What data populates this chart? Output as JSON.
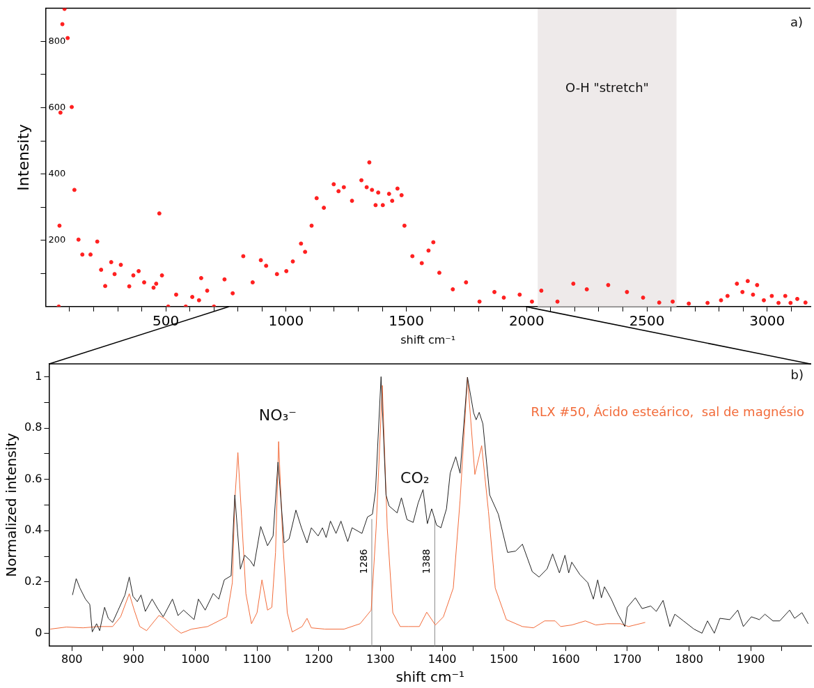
{
  "chart_data": [
    {
      "type": "scatter",
      "ylabel": "Intensity",
      "xlabel": "shift cm⁻¹",
      "marker": "circle",
      "grid": false,
      "xlim": [
        0,
        3180
      ],
      "ylim": [
        0,
        900
      ],
      "xticks": [
        {
          "value": 100,
          "label": null
        },
        {
          "value": 200,
          "label": null
        },
        {
          "value": 300,
          "label": null
        },
        {
          "value": 400,
          "label": null
        },
        500,
        {
          "value": 600,
          "label": null
        },
        {
          "value": 700,
          "label": null
        },
        {
          "value": 800,
          "label": null
        },
        {
          "value": 900,
          "label": null
        },
        1000,
        {
          "value": 1100,
          "label": null
        },
        {
          "value": 1200,
          "label": null
        },
        {
          "value": 1300,
          "label": null
        },
        {
          "value": 1400,
          "label": null
        },
        1500,
        {
          "value": 1600,
          "label": null
        },
        {
          "value": 1700,
          "label": null
        },
        {
          "value": 1800,
          "label": null
        },
        {
          "value": 1900,
          "label": null
        },
        2000,
        {
          "value": 2100,
          "label": null
        },
        {
          "value": 2200,
          "label": null
        },
        {
          "value": 2300,
          "label": null
        },
        {
          "value": 2400,
          "label": null
        },
        2500,
        {
          "value": 2600,
          "label": null
        },
        {
          "value": 2700,
          "label": null
        },
        {
          "value": 2800,
          "label": null
        },
        {
          "value": 2900,
          "label": null
        },
        3000,
        {
          "value": 3100,
          "label": null
        }
      ],
      "yticks": [
        {
          "value": 100,
          "label": null
        },
        200,
        {
          "value": 300,
          "label": null
        },
        400,
        {
          "value": 500,
          "label": null
        },
        600,
        {
          "value": 700,
          "label": null
        },
        800
      ],
      "bands": [
        {
          "axis": "x",
          "from": 2046,
          "to": 2623,
          "label": "O-H \"stretch\"",
          "color": "#eeeaea"
        }
      ],
      "annotations": [
        "a)"
      ],
      "series": [
        {
          "color": "#ff2020",
          "x": [
            55,
            58,
            62,
            70,
            79,
            92,
            109,
            120,
            137,
            153,
            187,
            215,
            231,
            248,
            273,
            287,
            313,
            348,
            365,
            387,
            410,
            449,
            460,
            473,
            484,
            510,
            543,
            583,
            610,
            638,
            647,
            672,
            700,
            744,
            778,
            822,
            861,
            895,
            917,
            962,
            1001,
            1028,
            1062,
            1079,
            1106,
            1127,
            1157,
            1198,
            1218,
            1240,
            1274,
            1313,
            1335,
            1346,
            1357,
            1372,
            1383,
            1402,
            1428,
            1441,
            1463,
            1480,
            1492,
            1525,
            1564,
            1592,
            1612,
            1637,
            1693,
            1748,
            1804,
            1866,
            1905,
            1971,
            2022,
            2061,
            2128,
            2194,
            2250,
            2339,
            2417,
            2484,
            2551,
            2607,
            2674,
            2752,
            2808,
            2835,
            2874,
            2897,
            2919,
            2941,
            2958,
            2986,
            3019,
            3047,
            3075,
            3097,
            3125,
            3159
          ],
          "values": [
            0,
            244,
            585,
            852,
            898,
            810,
            602,
            352,
            202,
            157,
            157,
            196,
            111,
            62,
            134,
            98,
            126,
            61,
            94,
            107,
            73,
            57,
            69,
            281,
            94,
            0,
            36,
            0,
            29,
            19,
            86,
            48,
            0,
            82,
            40,
            152,
            73,
            140,
            123,
            98,
            107,
            136,
            190,
            165,
            244,
            327,
            298,
            369,
            348,
            360,
            319,
            381,
            360,
            435,
            352,
            306,
            344,
            306,
            340,
            319,
            356,
            336,
            244,
            152,
            131,
            169,
            194,
            102,
            52,
            73,
            15,
            44,
            27,
            36,
            15,
            48,
            15,
            69,
            52,
            65,
            44,
            27,
            12,
            15,
            9,
            11,
            19,
            32,
            69,
            44,
            77,
            36,
            65,
            19,
            32,
            11,
            32,
            11,
            23,
            12
          ]
        }
      ]
    },
    {
      "type": "line",
      "ylabel": "Normalized intensity",
      "xlabel": "shift cm⁻¹",
      "grid": false,
      "legend": "top right",
      "xlim": [
        763,
        1998
      ],
      "ylim": [
        -0.05,
        1.05
      ],
      "xticks": [
        800,
        {
          "value": 850,
          "label": null
        },
        900,
        {
          "value": 950,
          "label": null
        },
        1000,
        {
          "value": 1050,
          "label": null
        },
        1100,
        {
          "value": 1150,
          "label": null
        },
        1200,
        {
          "value": 1250,
          "label": null
        },
        1300,
        {
          "value": 1350,
          "label": null
        },
        1400,
        {
          "value": 1450,
          "label": null
        },
        1500,
        {
          "value": 1550,
          "label": null
        },
        1600,
        {
          "value": 1650,
          "label": null
        },
        1700,
        {
          "value": 1750,
          "label": null
        },
        1800,
        {
          "value": 1850,
          "label": null
        },
        1900,
        {
          "value": 1950,
          "label": null
        }
      ],
      "yticks": [
        0,
        {
          "value": 0.1,
          "label": null
        },
        0.2,
        {
          "value": 0.3,
          "label": null
        },
        0.4,
        {
          "value": 0.5,
          "label": null
        },
        0.6,
        {
          "value": 0.7,
          "label": null
        },
        0.8,
        {
          "value": 0.9,
          "label": null
        },
        1
      ],
      "ref_lines": [
        {
          "axis": "x",
          "value": 1286,
          "label": "1286",
          "color": "#888888"
        },
        {
          "axis": "x",
          "value": 1388,
          "label": "1388",
          "color": "#888888"
        }
      ],
      "annotations": [
        "b)",
        "NO₃⁻",
        "CO₂"
      ],
      "series": [
        {
          "color": "#222222",
          "x": [
            801,
            807,
            813,
            822,
            829,
            833,
            840,
            845,
            853,
            859,
            866,
            875,
            886,
            893,
            899,
            906,
            912,
            919,
            930,
            939,
            948,
            963,
            972,
            981,
            998,
            1005,
            1016,
            1029,
            1038,
            1047,
            1058,
            1064,
            1073,
            1080,
            1089,
            1095,
            1106,
            1117,
            1126,
            1134,
            1144,
            1152,
            1163,
            1172,
            1181,
            1188,
            1199,
            1206,
            1212,
            1219,
            1228,
            1236,
            1247,
            1254,
            1270,
            1279,
            1287,
            1292,
            1301,
            1309,
            1314,
            1327,
            1334,
            1343,
            1353,
            1361,
            1369,
            1376,
            1383,
            1391,
            1398,
            1407,
            1413,
            1422,
            1429,
            1441,
            1451,
            1455,
            1460,
            1466,
            1477,
            1491,
            1506,
            1519,
            1530,
            1546,
            1557,
            1570,
            1579,
            1590,
            1599,
            1605,
            1610,
            1623,
            1636,
            1645,
            1652,
            1658,
            1663,
            1674,
            1685,
            1696,
            1700,
            1713,
            1724,
            1738,
            1747,
            1758,
            1769,
            1777,
            1791,
            1808,
            1821,
            1830,
            1841,
            1850,
            1866,
            1879,
            1888,
            1901,
            1914,
            1923,
            1936,
            1947,
            1963,
            1971,
            1983,
            1993
          ],
          "values": [
            0.149,
            0.213,
            0.176,
            0.133,
            0.112,
            0.005,
            0.037,
            0.01,
            0.101,
            0.058,
            0.042,
            0.09,
            0.149,
            0.219,
            0.144,
            0.123,
            0.149,
            0.085,
            0.133,
            0.096,
            0.064,
            0.133,
            0.069,
            0.09,
            0.053,
            0.133,
            0.09,
            0.155,
            0.133,
            0.208,
            0.224,
            0.539,
            0.25,
            0.304,
            0.283,
            0.261,
            0.416,
            0.341,
            0.379,
            0.667,
            0.352,
            0.368,
            0.48,
            0.411,
            0.352,
            0.411,
            0.379,
            0.411,
            0.373,
            0.437,
            0.389,
            0.437,
            0.357,
            0.411,
            0.389,
            0.453,
            0.464,
            0.555,
            1.0,
            0.539,
            0.496,
            0.469,
            0.528,
            0.443,
            0.432,
            0.507,
            0.56,
            0.427,
            0.485,
            0.421,
            0.411,
            0.485,
            0.624,
            0.688,
            0.624,
            0.998,
            0.859,
            0.832,
            0.861,
            0.816,
            0.539,
            0.464,
            0.315,
            0.32,
            0.347,
            0.24,
            0.219,
            0.251,
            0.309,
            0.235,
            0.304,
            0.235,
            0.277,
            0.229,
            0.197,
            0.133,
            0.208,
            0.138,
            0.181,
            0.133,
            0.074,
            0.026,
            0.101,
            0.138,
            0.096,
            0.106,
            0.085,
            0.128,
            0.026,
            0.074,
            0.048,
            0.016,
            0,
            0.048,
            0,
            0.058,
            0.053,
            0.09,
            0.026,
            0.064,
            0.053,
            0.074,
            0.048,
            0.048,
            0.09,
            0.058,
            0.08,
            0.037
          ]
        },
        {
          "name": "RLX #50, Ácido esteárico,  sal de magnésio",
          "color": "#f26b3a",
          "x": [
            765,
            791,
            818,
            844,
            866,
            879,
            893,
            901,
            910,
            921,
            941,
            950,
            968,
            977,
            994,
            1020,
            1038,
            1051,
            1060,
            1064,
            1069,
            1075,
            1082,
            1091,
            1100,
            1108,
            1117,
            1124,
            1130,
            1135,
            1142,
            1149,
            1157,
            1173,
            1181,
            1188,
            1210,
            1241,
            1267,
            1285,
            1293,
            1303,
            1311,
            1320,
            1332,
            1345,
            1363,
            1375,
            1389,
            1402,
            1418,
            1429,
            1441,
            1453,
            1464,
            1475,
            1486,
            1504,
            1530,
            1548,
            1566,
            1583,
            1592,
            1610,
            1632,
            1649,
            1667,
            1689,
            1702,
            1729
          ],
          "values": [
            0.016,
            0.024,
            0.021,
            0.026,
            0.026,
            0.064,
            0.154,
            0.09,
            0.026,
            0.01,
            0.069,
            0.058,
            0.016,
            0,
            0.016,
            0.026,
            0.048,
            0.064,
            0.197,
            0.517,
            0.704,
            0.453,
            0.154,
            0.037,
            0.08,
            0.208,
            0.09,
            0.101,
            0.315,
            0.747,
            0.347,
            0.08,
            0.005,
            0.026,
            0.058,
            0.021,
            0.016,
            0.016,
            0.037,
            0.09,
            0.411,
            0.966,
            0.411,
            0.08,
            0.026,
            0.026,
            0.026,
            0.082,
            0.032,
            0.064,
            0.176,
            0.517,
            0.998,
            0.619,
            0.731,
            0.475,
            0.176,
            0.053,
            0.026,
            0.021,
            0.048,
            0.048,
            0.026,
            0.032,
            0.048,
            0.032,
            0.037,
            0.037,
            0.026,
            0.042
          ]
        }
      ]
    }
  ]
}
